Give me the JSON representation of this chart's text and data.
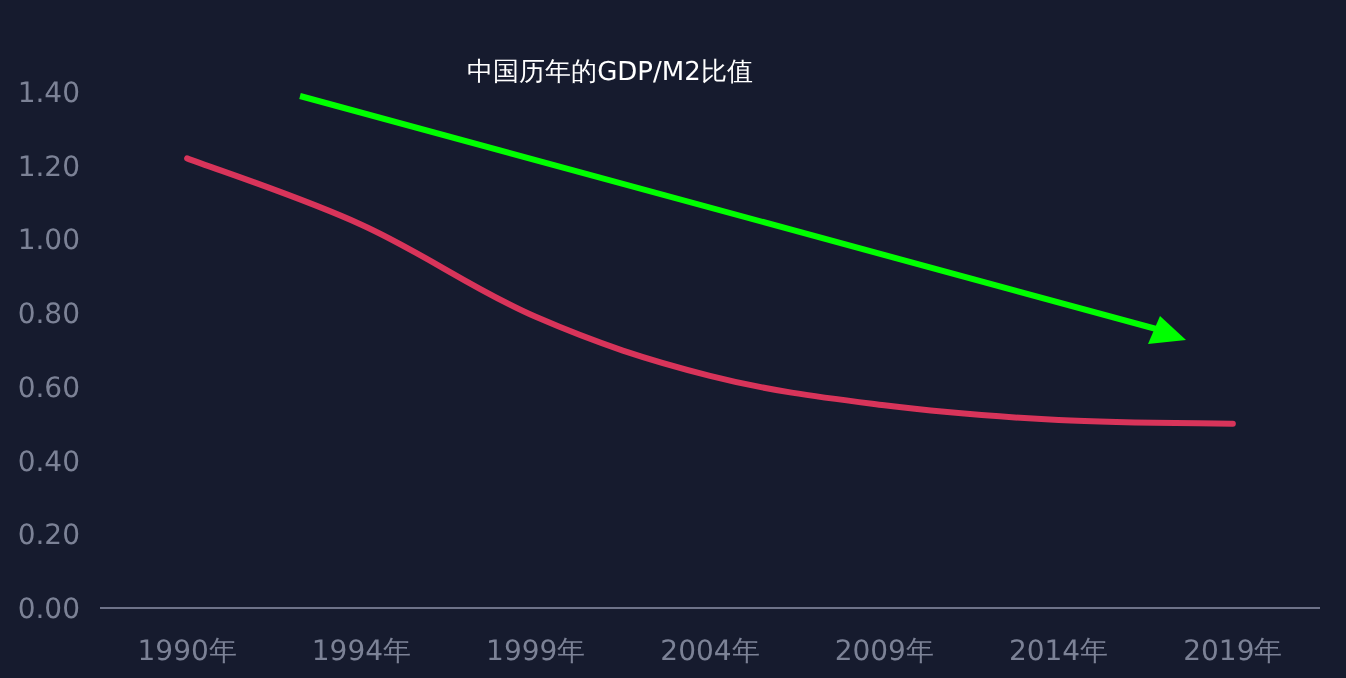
{
  "chart_data": {
    "type": "line",
    "title": "中国历年的GDP/M2比值",
    "categories": [
      "1990年",
      "1994年",
      "1999年",
      "2004年",
      "2009年",
      "2014年",
      "2019年"
    ],
    "series": [
      {
        "color": "#d8345a",
        "values": [
          1.22,
          1.04,
          0.79,
          0.63,
          0.55,
          0.51,
          0.5
        ]
      }
    ],
    "ylim": [
      0,
      1.4
    ],
    "yticks": [
      {
        "value": 0,
        "label": "0.00"
      },
      {
        "value": 0.2,
        "label": "0.20"
      },
      {
        "value": 0.4,
        "label": "0.40"
      },
      {
        "value": 0.6,
        "label": "0.60"
      },
      {
        "value": 0.8,
        "label": "0.80"
      },
      {
        "value": 1.0,
        "label": "1.00"
      },
      {
        "value": 1.2,
        "label": "1.20"
      },
      {
        "value": 1.4,
        "label": "1.40"
      }
    ],
    "grid": false,
    "marker": "none",
    "line_style": "solid"
  }
}
